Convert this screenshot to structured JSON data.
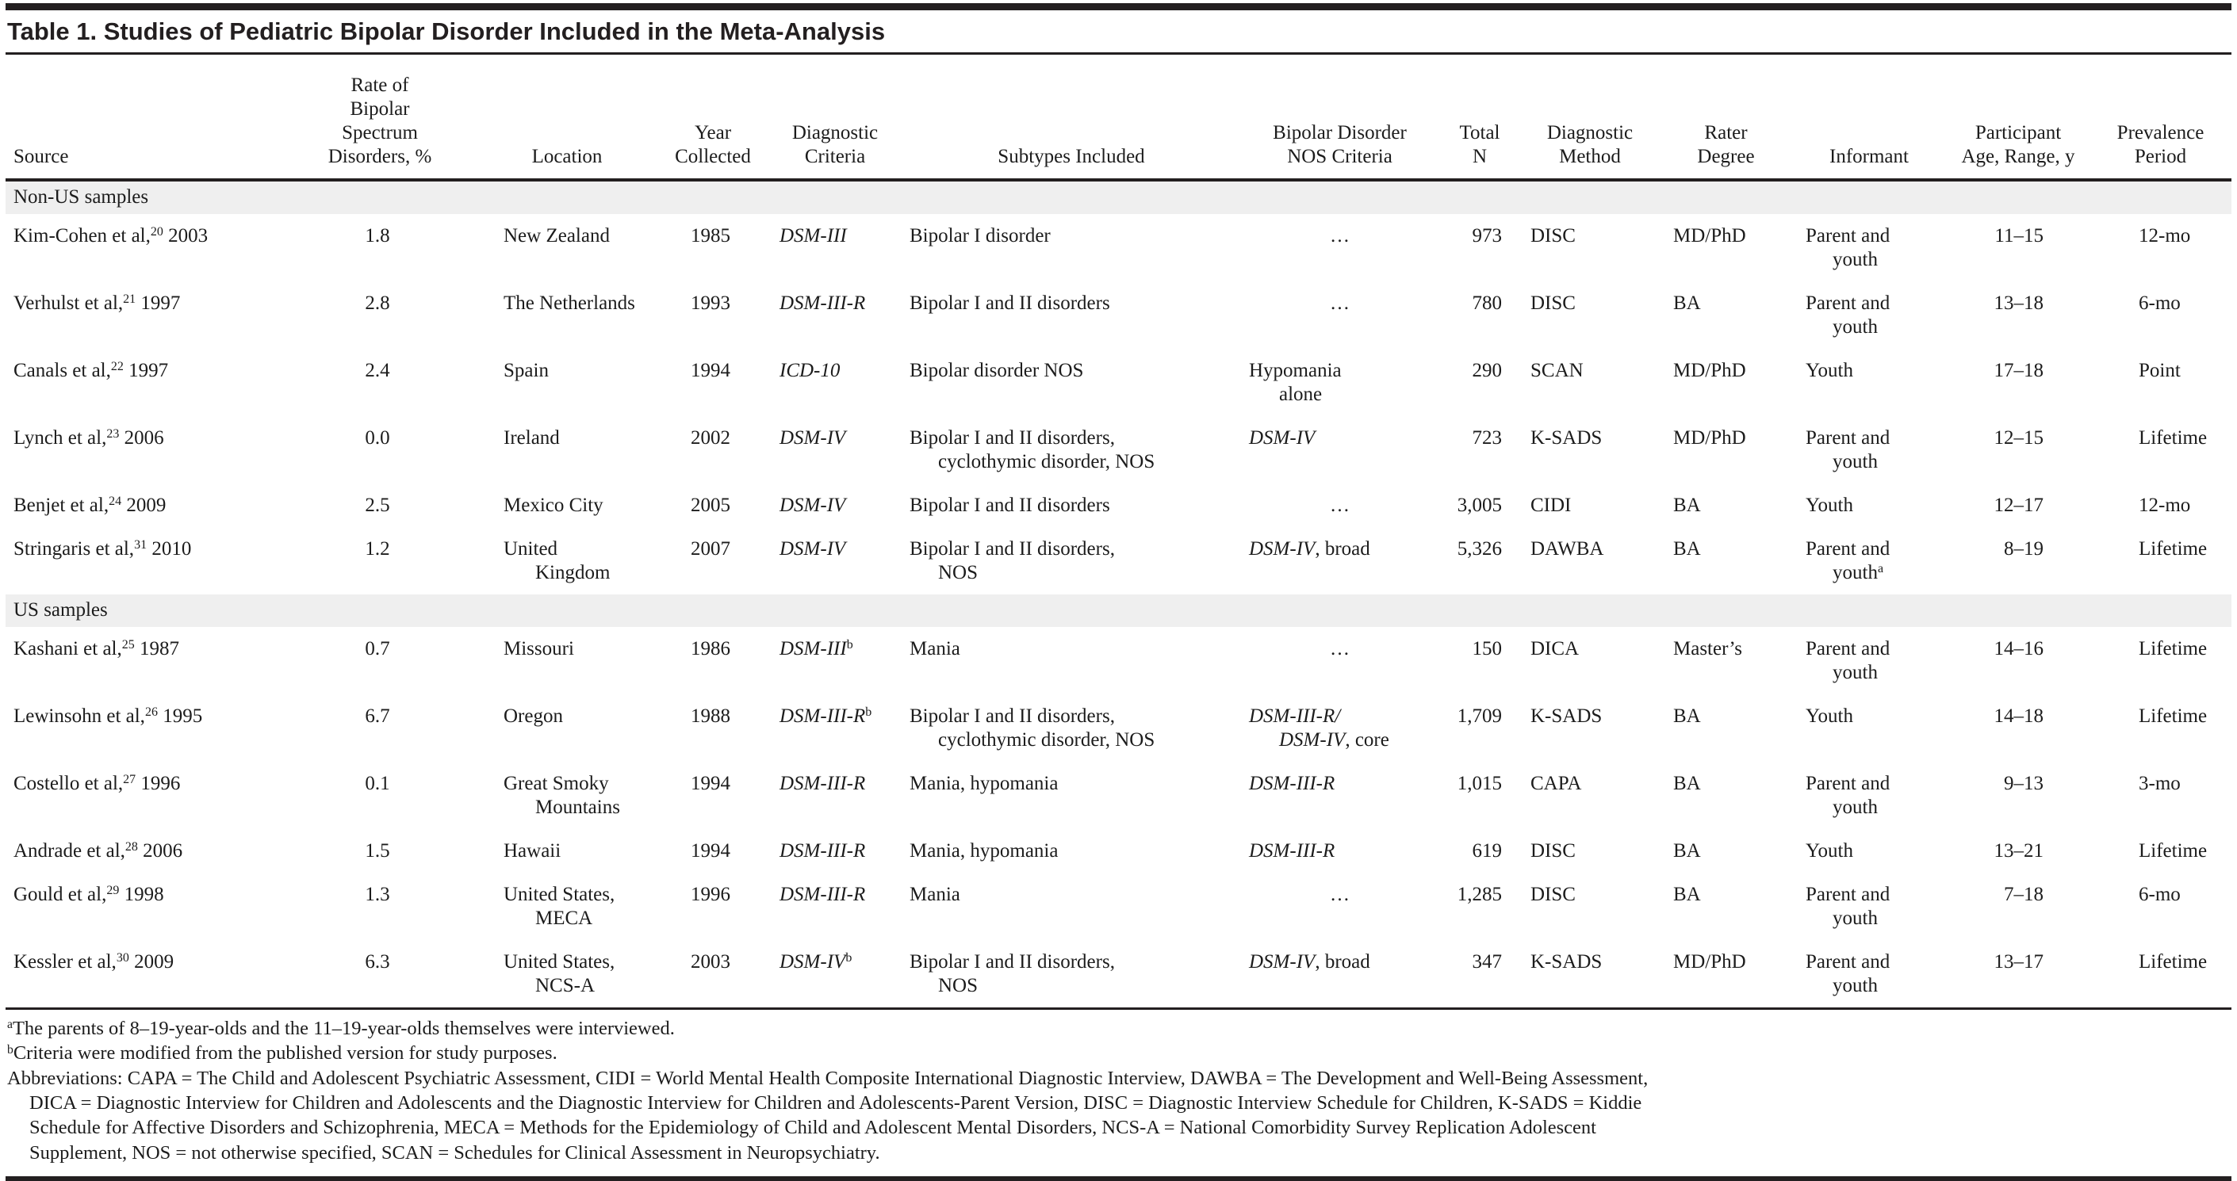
{
  "title": "Table 1. Studies of Pediatric Bipolar Disorder Included in the Meta-Analysis",
  "table": {
    "columns": [
      {
        "key": "source",
        "header_lines": [
          "Source"
        ]
      },
      {
        "key": "rate",
        "header_lines": [
          "Rate of",
          "Bipolar",
          "Spectrum",
          "Disorders, %"
        ]
      },
      {
        "key": "location",
        "header_lines": [
          "Location"
        ]
      },
      {
        "key": "year",
        "header_lines": [
          "Year",
          "Collected"
        ]
      },
      {
        "key": "criteria",
        "header_lines": [
          "Diagnostic",
          "Criteria"
        ]
      },
      {
        "key": "subtypes",
        "header_lines": [
          "Subtypes Included"
        ]
      },
      {
        "key": "nos",
        "header_lines": [
          "Bipolar Disorder",
          "NOS Criteria"
        ]
      },
      {
        "key": "total-n",
        "header_lines": [
          "Total",
          "N"
        ]
      },
      {
        "key": "method",
        "header_lines": [
          "Diagnostic",
          "Method"
        ]
      },
      {
        "key": "rater",
        "header_lines": [
          "Rater",
          "Degree"
        ]
      },
      {
        "key": "informant",
        "header_lines": [
          "Informant"
        ]
      },
      {
        "key": "age",
        "header_lines": [
          "Participant",
          "Age, Range, y"
        ]
      },
      {
        "key": "period",
        "header_lines": [
          "Prevalence",
          "Period"
        ]
      }
    ],
    "sections": [
      {
        "label": "Non-US samples",
        "rows": [
          {
            "cells": [
              {
                "seg": [
                  {
                    "t": "Kim-Cohen et al,"
                  },
                  {
                    "s": "20"
                  },
                  {
                    "t": " 2003"
                  }
                ]
              },
              "1.8",
              "New Zealand",
              "1985",
              {
                "seg": [
                  {
                    "i": "DSM-III"
                  }
                ]
              },
              "Bipolar I disorder",
              {
                "a": "c",
                "seg": [
                  {
                    "t": "…"
                  }
                ]
              },
              "973",
              "DISC",
              "MD/PhD",
              {
                "seg": [
                  {
                    "t": "Parent and"
                  },
                  {
                    "b": 1
                  },
                  {
                    "t": "youth"
                  }
                ]
              },
              "11–15",
              "12-mo"
            ]
          },
          {
            "cells": [
              {
                "seg": [
                  {
                    "t": "Verhulst et al,"
                  },
                  {
                    "s": "21"
                  },
                  {
                    "t": " 1997"
                  }
                ]
              },
              "2.8",
              "The Netherlands",
              "1993",
              {
                "seg": [
                  {
                    "i": "DSM-III-R"
                  }
                ]
              },
              "Bipolar I and II disorders",
              {
                "a": "c",
                "seg": [
                  {
                    "t": "…"
                  }
                ]
              },
              "780",
              "DISC",
              "BA",
              {
                "seg": [
                  {
                    "t": "Parent and"
                  },
                  {
                    "b": 1
                  },
                  {
                    "t": "youth"
                  }
                ]
              },
              "13–18",
              "6-mo"
            ]
          },
          {
            "cells": [
              {
                "seg": [
                  {
                    "t": "Canals et al,"
                  },
                  {
                    "s": "22"
                  },
                  {
                    "t": " 1997"
                  }
                ]
              },
              "2.4",
              "Spain",
              "1994",
              {
                "seg": [
                  {
                    "i": "ICD-10"
                  }
                ]
              },
              "Bipolar disorder NOS",
              {
                "seg": [
                  {
                    "t": "Hypomania"
                  },
                  {
                    "b": 1
                  },
                  {
                    "t": "alone"
                  }
                ]
              },
              "290",
              "SCAN",
              "MD/PhD",
              "Youth",
              "17–18",
              "Point"
            ]
          },
          {
            "cells": [
              {
                "seg": [
                  {
                    "t": "Lynch et al,"
                  },
                  {
                    "s": "23"
                  },
                  {
                    "t": " 2006"
                  }
                ]
              },
              "0.0",
              "Ireland",
              "2002",
              {
                "seg": [
                  {
                    "i": "DSM-IV"
                  }
                ]
              },
              {
                "seg": [
                  {
                    "t": "Bipolar I and II disorders,"
                  },
                  {
                    "b": 1
                  },
                  {
                    "t": "cyclothymic disorder, NOS"
                  }
                ]
              },
              {
                "seg": [
                  {
                    "i": "DSM-IV"
                  }
                ]
              },
              "723",
              "K-SADS",
              "MD/PhD",
              {
                "seg": [
                  {
                    "t": "Parent and"
                  },
                  {
                    "b": 1
                  },
                  {
                    "t": "youth"
                  }
                ]
              },
              "12–15",
              "Lifetime"
            ]
          },
          {
            "cells": [
              {
                "seg": [
                  {
                    "t": "Benjet et al,"
                  },
                  {
                    "s": "24"
                  },
                  {
                    "t": " 2009"
                  }
                ]
              },
              "2.5",
              "Mexico City",
              "2005",
              {
                "seg": [
                  {
                    "i": "DSM-IV"
                  }
                ]
              },
              "Bipolar I and II disorders",
              {
                "a": "c",
                "seg": [
                  {
                    "t": "…"
                  }
                ]
              },
              "3,005",
              "CIDI",
              "BA",
              "Youth",
              "12–17",
              "12-mo"
            ]
          },
          {
            "cells": [
              {
                "seg": [
                  {
                    "t": "Stringaris et al,"
                  },
                  {
                    "s": "31"
                  },
                  {
                    "t": " 2010"
                  }
                ]
              },
              "1.2",
              {
                "seg": [
                  {
                    "t": "United"
                  },
                  {
                    "b": 1
                  },
                  {
                    "t": "Kingdom"
                  }
                ]
              },
              "2007",
              {
                "seg": [
                  {
                    "i": "DSM-IV"
                  }
                ]
              },
              {
                "seg": [
                  {
                    "t": "Bipolar I and II disorders,"
                  },
                  {
                    "b": 1
                  },
                  {
                    "t": "NOS"
                  }
                ]
              },
              {
                "seg": [
                  {
                    "i": "DSM-IV"
                  },
                  {
                    "t": ", broad"
                  }
                ]
              },
              "5,326",
              "DAWBA",
              "BA",
              {
                "seg": [
                  {
                    "t": "Parent and"
                  },
                  {
                    "b": 1
                  },
                  {
                    "t": "youth"
                  },
                  {
                    "s": "a"
                  }
                ]
              },
              "8–19",
              "Lifetime"
            ]
          }
        ]
      },
      {
        "label": "US samples",
        "rows": [
          {
            "cells": [
              {
                "seg": [
                  {
                    "t": "Kashani et al,"
                  },
                  {
                    "s": "25"
                  },
                  {
                    "t": " 1987"
                  }
                ]
              },
              "0.7",
              "Missouri",
              "1986",
              {
                "seg": [
                  {
                    "i": "DSM-III"
                  },
                  {
                    "s": "b"
                  }
                ]
              },
              "Mania",
              {
                "a": "c",
                "seg": [
                  {
                    "t": "…"
                  }
                ]
              },
              "150",
              "DICA",
              "Master’s",
              {
                "seg": [
                  {
                    "t": "Parent and"
                  },
                  {
                    "b": 1
                  },
                  {
                    "t": "youth"
                  }
                ]
              },
              "14–16",
              "Lifetime"
            ]
          },
          {
            "cells": [
              {
                "seg": [
                  {
                    "t": "Lewinsohn et al,"
                  },
                  {
                    "s": "26"
                  },
                  {
                    "t": " 1995"
                  }
                ]
              },
              "6.7",
              "Oregon",
              "1988",
              {
                "seg": [
                  {
                    "i": "DSM-III-R"
                  },
                  {
                    "s": "b"
                  }
                ]
              },
              {
                "seg": [
                  {
                    "t": "Bipolar I and II disorders,"
                  },
                  {
                    "b": 1
                  },
                  {
                    "t": "cyclothymic disorder, NOS"
                  }
                ]
              },
              {
                "seg": [
                  {
                    "i": "DSM-III-R/"
                  },
                  {
                    "b": 1
                  },
                  {
                    "i": "DSM-IV"
                  },
                  {
                    "t": ", core"
                  }
                ]
              },
              "1,709",
              "K-SADS",
              "BA",
              "Youth",
              "14–18",
              "Lifetime"
            ]
          },
          {
            "cells": [
              {
                "seg": [
                  {
                    "t": "Costello et al,"
                  },
                  {
                    "s": "27"
                  },
                  {
                    "t": " 1996"
                  }
                ]
              },
              "0.1",
              {
                "seg": [
                  {
                    "t": "Great Smoky"
                  },
                  {
                    "b": 1
                  },
                  {
                    "t": "Mountains"
                  }
                ]
              },
              "1994",
              {
                "seg": [
                  {
                    "i": "DSM-III-R"
                  }
                ]
              },
              "Mania, hypomania",
              {
                "seg": [
                  {
                    "i": "DSM-III-R"
                  }
                ]
              },
              "1,015",
              "CAPA",
              "BA",
              {
                "seg": [
                  {
                    "t": "Parent and"
                  },
                  {
                    "b": 1
                  },
                  {
                    "t": "youth"
                  }
                ]
              },
              "9–13",
              "3-mo"
            ]
          },
          {
            "cells": [
              {
                "seg": [
                  {
                    "t": "Andrade et al,"
                  },
                  {
                    "s": "28"
                  },
                  {
                    "t": " 2006"
                  }
                ]
              },
              "1.5",
              "Hawaii",
              "1994",
              {
                "seg": [
                  {
                    "i": "DSM-III-R"
                  }
                ]
              },
              "Mania, hypomania",
              {
                "seg": [
                  {
                    "i": "DSM-III-R"
                  }
                ]
              },
              "619",
              "DISC",
              "BA",
              "Youth",
              "13–21",
              "Lifetime"
            ]
          },
          {
            "cells": [
              {
                "seg": [
                  {
                    "t": "Gould et al,"
                  },
                  {
                    "s": "29"
                  },
                  {
                    "t": " 1998"
                  }
                ]
              },
              "1.3",
              {
                "seg": [
                  {
                    "t": "United States,"
                  },
                  {
                    "b": 1
                  },
                  {
                    "t": "MECA"
                  }
                ]
              },
              "1996",
              {
                "seg": [
                  {
                    "i": "DSM-III-R"
                  }
                ]
              },
              "Mania",
              {
                "a": "c",
                "seg": [
                  {
                    "t": "…"
                  }
                ]
              },
              "1,285",
              "DISC",
              "BA",
              {
                "seg": [
                  {
                    "t": "Parent and"
                  },
                  {
                    "b": 1
                  },
                  {
                    "t": "youth"
                  }
                ]
              },
              "7–18",
              "6-mo"
            ]
          },
          {
            "cells": [
              {
                "seg": [
                  {
                    "t": "Kessler et al,"
                  },
                  {
                    "s": "30"
                  },
                  {
                    "t": " 2009"
                  }
                ]
              },
              "6.3",
              {
                "seg": [
                  {
                    "t": "United States,"
                  },
                  {
                    "b": 1
                  },
                  {
                    "t": "NCS-A"
                  }
                ]
              },
              "2003",
              {
                "seg": [
                  {
                    "i": "DSM-IV"
                  },
                  {
                    "s": "b"
                  }
                ]
              },
              {
                "seg": [
                  {
                    "t": "Bipolar I and II disorders,"
                  },
                  {
                    "b": 1
                  },
                  {
                    "t": "NOS"
                  }
                ]
              },
              {
                "seg": [
                  {
                    "i": "DSM-IV"
                  },
                  {
                    "t": ", broad"
                  }
                ]
              },
              "347",
              "K-SADS",
              "MD/PhD",
              {
                "seg": [
                  {
                    "t": "Parent and"
                  },
                  {
                    "b": 1
                  },
                  {
                    "t": "youth"
                  }
                ]
              },
              "13–17",
              "Lifetime"
            ]
          }
        ]
      }
    ]
  },
  "footnotes": [
    {
      "marker": "a",
      "text": "The parents of 8–19-year-olds and the 11–19-year-olds themselves were interviewed."
    },
    {
      "marker": "b",
      "text": "Criteria were modified from the published version for study purposes."
    }
  ],
  "abbreviations_lines": [
    "Abbreviations: CAPA = The Child and Adolescent Psychiatric Assessment, CIDI = World Mental Health Composite International Diagnostic Interview, DAWBA = The Development and Well-Being Assessment,",
    "DICA = Diagnostic Interview for Children and Adolescents and the Diagnostic Interview for Children and Adolescents-Parent Version, DISC = Diagnostic Interview Schedule for Children, K-SADS = Kiddie",
    "Schedule for Affective Disorders and Schizophrenia, MECA = Methods for the Epidemiology of Child and Adolescent Mental Disorders, NCS-A = National Comorbidity Survey Replication Adolescent",
    "Supplement, NOS = not otherwise specified, SCAN = Schedules for Clinical Assessment in Neuropsychiatry."
  ]
}
